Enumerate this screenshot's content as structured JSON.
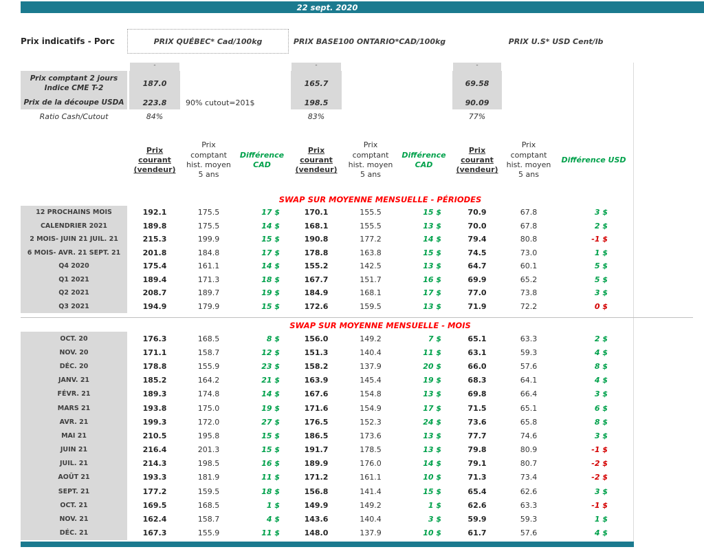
{
  "title_bar": {
    "date": "22 sept. 2020"
  },
  "page_title": "Prix indicatifs - Porc",
  "price_groups": [
    {
      "label": "PRIX QUÉBEC* Cad/100kg"
    },
    {
      "label": "PRIX BASE100 ONTARIO*CAD/100kg"
    },
    {
      "label": "PRIX U.S* USD Cent/lb"
    }
  ],
  "placeholders": {
    "dash": "-"
  },
  "summary": {
    "rows": [
      {
        "label": "Prix comptant 2 jours\nIndice CME T-2",
        "values": [
          "187.0",
          "165.7",
          "69.58"
        ],
        "note": ""
      },
      {
        "label": "Prix de la découpe USDA",
        "values": [
          "223.8",
          "198.5",
          "90.09"
        ],
        "note": "90% cutout=201$"
      },
      {
        "label": "Ratio Cash/Cutout",
        "values": [
          "84%",
          "83%",
          "77%"
        ],
        "note": ""
      }
    ]
  },
  "column_headers": {
    "current": "Prix courant (vendeur)",
    "hist": "Prix comptant hist. moyen 5 ans",
    "diff_cad": "Différence CAD",
    "diff_usd": "Différence USD"
  },
  "table": {
    "sections": [
      {
        "title": "SWAP SUR MOYENNE MENSUELLE - PÉRIODES",
        "divider_above": false,
        "rows": [
          {
            "label": "12 PROCHAINS MOIS",
            "qc": [
              "192.1",
              "175.5",
              "17 $"
            ],
            "on": [
              "170.1",
              "155.5",
              "15 $"
            ],
            "us": [
              "70.9",
              "67.8",
              "3 $"
            ]
          },
          {
            "label": "CALENDRIER 2021",
            "qc": [
              "189.8",
              "175.5",
              "14 $"
            ],
            "on": [
              "168.1",
              "155.5",
              "13 $"
            ],
            "us": [
              "70.0",
              "67.8",
              "2 $"
            ]
          },
          {
            "label": "2 MOIS- JUIN 21 JUIL. 21",
            "qc": [
              "215.3",
              "199.9",
              "15 $"
            ],
            "on": [
              "190.8",
              "177.2",
              "14 $"
            ],
            "us": [
              "79.4",
              "80.8",
              "-1 $"
            ]
          },
          {
            "label": "6 MOIS- AVR. 21 SEPT. 21",
            "qc": [
              "201.8",
              "184.8",
              "17 $"
            ],
            "on": [
              "178.8",
              "163.8",
              "15 $"
            ],
            "us": [
              "74.5",
              "73.0",
              "1 $"
            ]
          },
          {
            "label": "Q4 2020",
            "qc": [
              "175.4",
              "161.1",
              "14 $"
            ],
            "on": [
              "155.2",
              "142.5",
              "13 $"
            ],
            "us": [
              "64.7",
              "60.1",
              "5 $"
            ]
          },
          {
            "label": "Q1 2021",
            "qc": [
              "189.4",
              "171.3",
              "18 $"
            ],
            "on": [
              "167.7",
              "151.7",
              "16 $"
            ],
            "us": [
              "69.9",
              "65.2",
              "5 $"
            ]
          },
          {
            "label": "Q2 2021",
            "qc": [
              "208.7",
              "189.7",
              "19 $"
            ],
            "on": [
              "184.9",
              "168.1",
              "17 $"
            ],
            "us": [
              "77.0",
              "73.8",
              "3 $"
            ]
          },
          {
            "label": "Q3 2021",
            "qc": [
              "194.9",
              "179.9",
              "15 $"
            ],
            "on": [
              "172.6",
              "159.5",
              "13 $"
            ],
            "us": [
              "71.9",
              "72.2",
              "0 $"
            ]
          }
        ]
      },
      {
        "title": "SWAP SUR MOYENNE MENSUELLE - MOIS",
        "divider_above": true,
        "rows": [
          {
            "label": "OCT. 20",
            "qc": [
              "176.3",
              "168.5",
              "8 $"
            ],
            "on": [
              "156.0",
              "149.2",
              "7 $"
            ],
            "us": [
              "65.1",
              "63.3",
              "2 $"
            ]
          },
          {
            "label": "NOV. 20",
            "qc": [
              "171.1",
              "158.7",
              "12 $"
            ],
            "on": [
              "151.3",
              "140.4",
              "11 $"
            ],
            "us": [
              "63.1",
              "59.3",
              "4 $"
            ]
          },
          {
            "label": "DÉC. 20",
            "qc": [
              "178.8",
              "155.9",
              "23 $"
            ],
            "on": [
              "158.2",
              "137.9",
              "20 $"
            ],
            "us": [
              "66.0",
              "57.6",
              "8 $"
            ]
          },
          {
            "label": "JANV. 21",
            "qc": [
              "185.2",
              "164.2",
              "21 $"
            ],
            "on": [
              "163.9",
              "145.4",
              "19 $"
            ],
            "us": [
              "68.3",
              "64.1",
              "4 $"
            ]
          },
          {
            "label": "FÉVR. 21",
            "qc": [
              "189.3",
              "174.8",
              "14 $"
            ],
            "on": [
              "167.6",
              "154.8",
              "13 $"
            ],
            "us": [
              "69.8",
              "66.4",
              "3 $"
            ]
          },
          {
            "label": "MARS 21",
            "qc": [
              "193.8",
              "175.0",
              "19 $"
            ],
            "on": [
              "171.6",
              "154.9",
              "17 $"
            ],
            "us": [
              "71.5",
              "65.1",
              "6 $"
            ]
          },
          {
            "label": "AVR. 21",
            "qc": [
              "199.3",
              "172.0",
              "27 $"
            ],
            "on": [
              "176.5",
              "152.3",
              "24 $"
            ],
            "us": [
              "73.6",
              "65.8",
              "8 $"
            ]
          },
          {
            "label": "MAI 21",
            "qc": [
              "210.5",
              "195.8",
              "15 $"
            ],
            "on": [
              "186.5",
              "173.6",
              "13 $"
            ],
            "us": [
              "77.7",
              "74.6",
              "3 $"
            ]
          },
          {
            "label": "JUIN 21",
            "qc": [
              "216.4",
              "201.3",
              "15 $"
            ],
            "on": [
              "191.7",
              "178.5",
              "13 $"
            ],
            "us": [
              "79.8",
              "80.9",
              "-1 $"
            ]
          },
          {
            "label": "JUIL. 21",
            "qc": [
              "214.3",
              "198.5",
              "16 $"
            ],
            "on": [
              "189.9",
              "176.0",
              "14 $"
            ],
            "us": [
              "79.1",
              "80.7",
              "-2 $"
            ]
          },
          {
            "label": "AOÛT 21",
            "qc": [
              "193.3",
              "181.9",
              "11 $"
            ],
            "on": [
              "171.2",
              "161.1",
              "10 $"
            ],
            "us": [
              "71.3",
              "73.4",
              "-2 $"
            ]
          },
          {
            "label": "SEPT. 21",
            "qc": [
              "177.2",
              "159.5",
              "18 $"
            ],
            "on": [
              "156.8",
              "141.4",
              "15 $"
            ],
            "us": [
              "65.4",
              "62.6",
              "3 $"
            ]
          },
          {
            "label": "OCT. 21",
            "qc": [
              "169.5",
              "168.5",
              "1 $"
            ],
            "on": [
              "149.9",
              "149.2",
              "1 $"
            ],
            "us": [
              "62.6",
              "63.3",
              "-1 $"
            ]
          },
          {
            "label": "NOV. 21",
            "qc": [
              "162.4",
              "158.7",
              "4 $"
            ],
            "on": [
              "143.6",
              "140.4",
              "3 $"
            ],
            "us": [
              "59.9",
              "59.3",
              "1 $"
            ]
          },
          {
            "label": "DÉC. 21",
            "qc": [
              "167.3",
              "155.9",
              "11 $"
            ],
            "on": [
              "148.0",
              "137.9",
              "10 $"
            ],
            "us": [
              "61.7",
              "57.6",
              "4 $"
            ]
          }
        ]
      }
    ]
  },
  "colors": {
    "header_bar": "#1B7A8F",
    "cell_gray": "#D9D9D9",
    "positive": "#00A14B",
    "negative": "#D40000",
    "section_title": "#FF0000"
  }
}
